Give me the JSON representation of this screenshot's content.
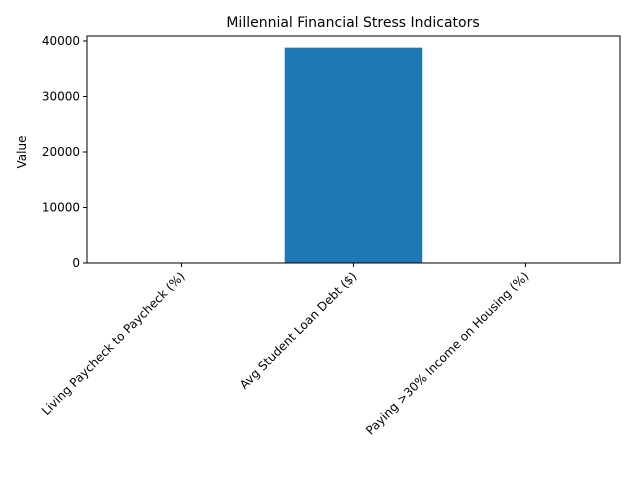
{
  "chart_data": {
    "type": "bar",
    "title": "Millennial Financial Stress Indicators",
    "xlabel": "",
    "ylabel": "Value",
    "categories": [
      "Living Paycheck to Paycheck (%)",
      "Avg Student Loan Debt ($)",
      "Paying >30% Income on Housing (%)"
    ],
    "values": [
      56,
      38800,
      47
    ],
    "ylim": [
      0,
      40900
    ],
    "yticks": [
      0,
      10000,
      20000,
      30000,
      40000
    ],
    "grid": false,
    "bar_color": "#1f77b4"
  }
}
